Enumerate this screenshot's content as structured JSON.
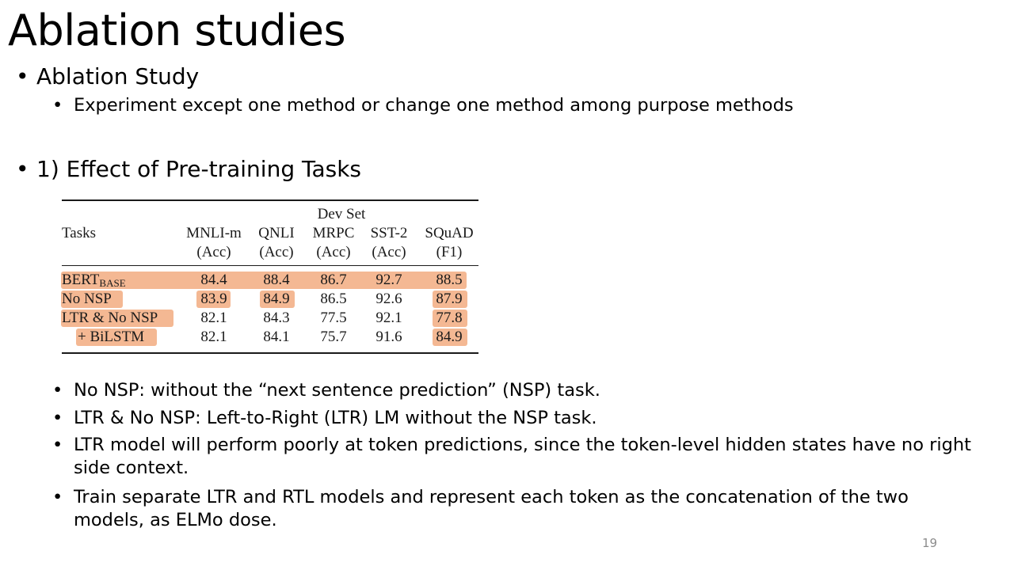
{
  "slide": {
    "title": "Ablation studies",
    "page_number": "19"
  },
  "bullets_top": [
    {
      "text": "Ablation Study"
    },
    {
      "text": "Experiment except one method or change one method among purpose methods"
    },
    {
      "text": "1) Effect of Pre-training Tasks"
    }
  ],
  "table": {
    "group_header": "Dev Set",
    "row_header_label": "Tasks",
    "columns": [
      {
        "name": "MNLI-m",
        "metric": "(Acc)"
      },
      {
        "name": "QNLI",
        "metric": "(Acc)"
      },
      {
        "name": "MRPC",
        "metric": "(Acc)"
      },
      {
        "name": "SST-2",
        "metric": "(Acc)"
      },
      {
        "name": "SQuAD",
        "metric": "(F1)"
      }
    ],
    "rows": [
      {
        "label": "BERT",
        "label_sub": "BASE",
        "values": [
          "84.4",
          "88.4",
          "86.7",
          "92.7",
          "88.5"
        ]
      },
      {
        "label": "No NSP",
        "label_sub": "",
        "values": [
          "83.9",
          "84.9",
          "86.5",
          "92.6",
          "87.9"
        ]
      },
      {
        "label": "LTR & No NSP",
        "label_sub": "",
        "values": [
          "82.1",
          "84.3",
          "77.5",
          "92.1",
          "77.8"
        ]
      },
      {
        "label": "+ BiLSTM",
        "label_sub": "",
        "values": [
          "82.1",
          "84.1",
          "75.7",
          "91.6",
          "84.9"
        ]
      }
    ],
    "highlight_color": "#f4b893"
  },
  "bullets_bottom": [
    {
      "text": "No NSP: without the “next sentence prediction” (NSP) task."
    },
    {
      "text": "LTR & No NSP: Left-to-Right (LTR) LM without the NSP task."
    },
    {
      "text": "LTR model will perform poorly at token predictions, since the token-level hidden states have no right side context."
    },
    {
      "text": "Train separate LTR and RTL models and represent each token as the concatenation of the two models, as ELMo dose."
    }
  ]
}
